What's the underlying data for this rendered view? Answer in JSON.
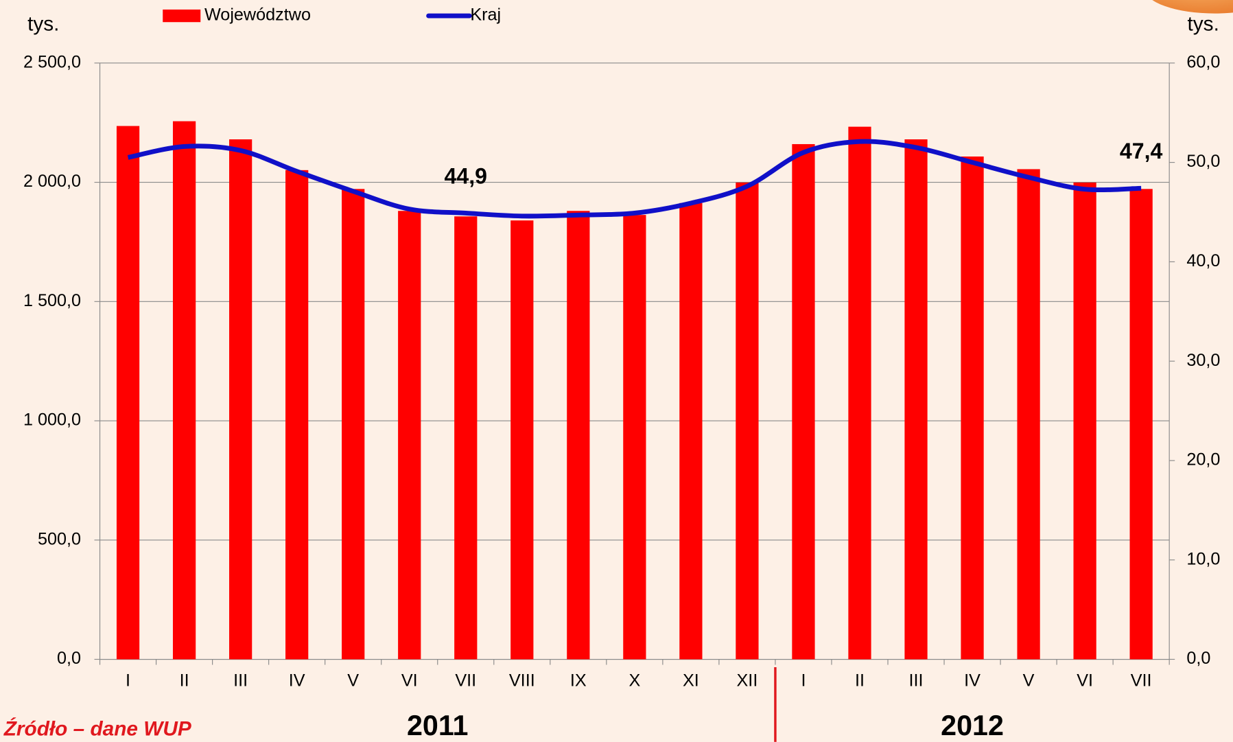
{
  "chart_data": {
    "type": "bar",
    "left_axis_label": "tys.",
    "right_axis_label": "tys.",
    "source": "Źródło – dane WUP",
    "categories": [
      "I",
      "II",
      "III",
      "IV",
      "V",
      "VI",
      "VII",
      "VIII",
      "IX",
      "X",
      "XI",
      "XII",
      "I",
      "II",
      "III",
      "IV",
      "V",
      "VI",
      "VII"
    ],
    "year_labels": [
      "2011",
      "2012"
    ],
    "series": [
      {
        "name": "Województwo",
        "type": "bar",
        "color": "#ff0000",
        "values": [
          2236,
          2256,
          2180,
          2051,
          1972,
          1880,
          1857,
          1840,
          1880,
          1863,
          1913,
          1999,
          2160,
          2233,
          2180,
          2108,
          2055,
          1999,
          1972
        ]
      },
      {
        "name": "Kraj",
        "type": "line",
        "color": "#1010c8",
        "axis": "y2",
        "values": [
          50.5,
          51.6,
          51.2,
          49.1,
          47.1,
          45.3,
          44.9,
          44.6,
          44.7,
          44.9,
          45.9,
          47.6,
          51.0,
          52.1,
          51.5,
          50.0,
          48.5,
          47.3,
          47.4
        ],
        "value_labels": [
          null,
          null,
          null,
          null,
          null,
          null,
          "44,9",
          null,
          null,
          null,
          null,
          null,
          null,
          null,
          null,
          null,
          null,
          null,
          "47,4"
        ]
      }
    ],
    "ylim": [
      0,
      2500
    ],
    "yticks": [
      {
        "value": 0,
        "label": "0,0"
      },
      {
        "value": 500,
        "label": "500,0"
      },
      {
        "value": 1000,
        "label": "1 000,0"
      },
      {
        "value": 1500,
        "label": "1 500,0"
      },
      {
        "value": 2000,
        "label": "2 000,0"
      },
      {
        "value": 2500,
        "label": "2 500,0"
      }
    ],
    "y2lim": [
      0,
      60
    ],
    "y2ticks": [
      {
        "value": 0,
        "label": "0,0"
      },
      {
        "value": 10,
        "label": "10,0"
      },
      {
        "value": 20,
        "label": "20,0"
      },
      {
        "value": 30,
        "label": "30,0"
      },
      {
        "value": 40,
        "label": "40,0"
      },
      {
        "value": 50,
        "label": "50,0"
      },
      {
        "value": 60,
        "label": "60,0"
      }
    ],
    "grid": true
  }
}
